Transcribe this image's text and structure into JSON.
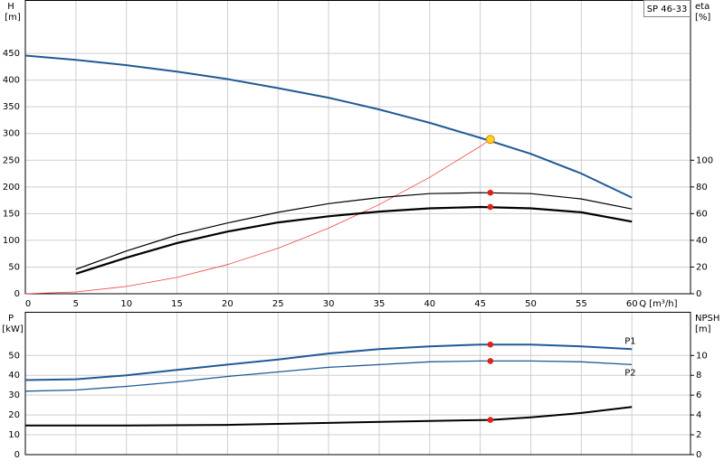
{
  "chart_data": [
    {
      "type": "line",
      "label": "SP 46-33",
      "y_label": "H",
      "y_unit": "[m]",
      "y2_label": "eta",
      "y2_unit": "[%]",
      "x_label": "Q [m³/h]",
      "xlim": [
        0,
        65.8
      ],
      "xticks": [
        0,
        5,
        10,
        15,
        20,
        25,
        30,
        35,
        40,
        45,
        50,
        55,
        60
      ],
      "show_xtick_labels": true,
      "ylim": [
        0,
        550
      ],
      "yticks": [
        0,
        50,
        100,
        150,
        200,
        250,
        300,
        350,
        400,
        450
      ],
      "y2lim": [
        0,
        220
      ],
      "y2ticks": [
        0,
        20,
        40,
        60,
        80,
        100
      ],
      "grid": true,
      "series": [
        {
          "color": "#1f5a96",
          "width": 2,
          "x": [
            0,
            5,
            10,
            15,
            20,
            25,
            30,
            35,
            40,
            45,
            50,
            55,
            60
          ],
          "values": [
            446,
            438,
            428,
            416,
            402,
            385,
            367,
            345,
            320,
            292,
            262,
            225,
            180
          ]
        },
        {
          "color": "#f04040",
          "width": 0.8,
          "x": [
            0,
            5,
            10,
            15,
            20,
            25,
            30,
            35,
            40,
            45,
            46
          ],
          "values": [
            0,
            3.4,
            13.7,
            30.7,
            54.6,
            85.3,
            122.9,
            167,
            218,
            276,
            289
          ]
        },
        {
          "color": "#000000",
          "width": 1.2,
          "axis": "y2",
          "x": [
            5,
            10,
            15,
            20,
            25,
            30,
            35,
            40,
            45,
            50,
            55,
            60
          ],
          "values": [
            18.3,
            32,
            44,
            53,
            61,
            67.5,
            72,
            75,
            75.7,
            75,
            71,
            63.5
          ]
        },
        {
          "color": "#000000",
          "width": 2.2,
          "axis": "y2",
          "x": [
            5,
            10,
            15,
            20,
            25,
            30,
            35,
            40,
            45,
            50,
            55,
            60
          ],
          "values": [
            15,
            27,
            38,
            46.6,
            53.4,
            58,
            61.5,
            64,
            65,
            64,
            61,
            54
          ]
        }
      ],
      "markers": [
        {
          "x": 46,
          "y": 289,
          "color": "#ffd21f",
          "stroke": "#e08000"
        },
        {
          "x": 46,
          "y": 75.7,
          "axis": "y2",
          "color": "#e0201a"
        },
        {
          "x": 46,
          "y": 65,
          "axis": "y2",
          "color": "#e0201a"
        }
      ]
    },
    {
      "type": "line",
      "y_label": "P",
      "y_unit": "[kW]",
      "y2_label": "NPSH",
      "y2_unit": "[m]",
      "xlim": [
        0,
        65.8
      ],
      "xticks": [
        0,
        5,
        10,
        15,
        20,
        25,
        30,
        35,
        40,
        45,
        50,
        55,
        60
      ],
      "show_xtick_labels": false,
      "ylim": [
        0,
        72
      ],
      "yticks": [
        0,
        10,
        20,
        30,
        40,
        50
      ],
      "y2lim": [
        0,
        14.4
      ],
      "y2ticks": [
        0,
        2,
        4,
        6,
        8,
        10
      ],
      "grid": true,
      "series": [
        {
          "name": "P1",
          "color": "#1f5a96",
          "width": 2,
          "x": [
            0,
            5,
            10,
            15,
            20,
            25,
            30,
            35,
            40,
            45,
            50,
            55,
            60
          ],
          "values": [
            37.6,
            38,
            40,
            42.7,
            45.4,
            48,
            51,
            53.2,
            54.6,
            55.5,
            55.5,
            54.6,
            53.2
          ]
        },
        {
          "name": "P2",
          "color": "#1f5a96",
          "width": 1.3,
          "x": [
            0,
            5,
            10,
            15,
            20,
            25,
            30,
            35,
            40,
            45,
            50,
            55,
            60
          ],
          "values": [
            32,
            32.6,
            34.4,
            36.7,
            39.4,
            41.7,
            44,
            45.4,
            46.8,
            47.2,
            47.2,
            46.8,
            45.4
          ]
        },
        {
          "color": "#000000",
          "width": 2,
          "axis": "y2",
          "x": [
            0,
            10,
            20,
            30,
            40,
            46,
            50,
            55,
            60
          ],
          "values": [
            2.94,
            2.94,
            3.0,
            3.2,
            3.4,
            3.5,
            3.76,
            4.2,
            4.8
          ]
        }
      ],
      "markers": [
        {
          "x": 46,
          "y": 55.5,
          "color": "#e0201a"
        },
        {
          "x": 46,
          "y": 47.2,
          "color": "#e0201a"
        },
        {
          "x": 46,
          "y": 3.5,
          "axis": "y2",
          "color": "#e0201a"
        }
      ]
    }
  ]
}
